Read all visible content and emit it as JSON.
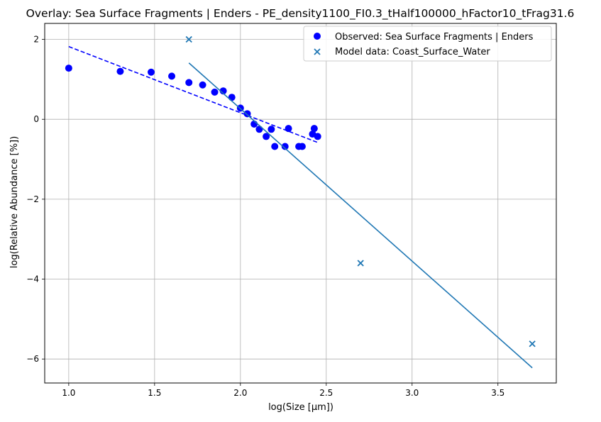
{
  "chart_data": {
    "type": "scatter",
    "title": "Overlay: Sea Surface Fragments | Enders - PE_density1100_FI0.3_tHalf100000_hFactor10_tFrag31.6",
    "xlabel": "log(Size [µm])",
    "ylabel": "log(Relative Abundance [%])",
    "xlim": [
      0.86,
      3.84
    ],
    "ylim": [
      -6.6,
      2.4
    ],
    "x_ticks": [
      1.0,
      1.5,
      2.0,
      2.5,
      3.0,
      3.5
    ],
    "x_tick_labels": [
      "1.0",
      "1.5",
      "2.0",
      "2.5",
      "3.0",
      "3.5"
    ],
    "y_ticks": [
      2,
      0,
      -2,
      -4,
      -6
    ],
    "y_tick_labels": [
      "2",
      "0",
      "−2",
      "−4",
      "−6"
    ],
    "grid": true,
    "legend_position": "top-right",
    "series": [
      {
        "name": "Observed: Sea Surface Fragments | Enders",
        "kind": "scatter",
        "marker": "circle",
        "color": "#0000ff",
        "points": [
          [
            1.0,
            1.28
          ],
          [
            1.3,
            1.2
          ],
          [
            1.48,
            1.18
          ],
          [
            1.6,
            1.08
          ],
          [
            1.7,
            0.92
          ],
          [
            1.78,
            0.86
          ],
          [
            1.85,
            0.68
          ],
          [
            1.9,
            0.71
          ],
          [
            1.95,
            0.55
          ],
          [
            2.0,
            0.28
          ],
          [
            2.04,
            0.14
          ],
          [
            2.08,
            -0.12
          ],
          [
            2.11,
            -0.25
          ],
          [
            2.15,
            -0.43
          ],
          [
            2.18,
            -0.25
          ],
          [
            2.2,
            -0.68
          ],
          [
            2.26,
            -0.68
          ],
          [
            2.28,
            -0.23
          ],
          [
            2.34,
            -0.68
          ],
          [
            2.36,
            -0.68
          ],
          [
            2.42,
            -0.37
          ],
          [
            2.43,
            -0.23
          ],
          [
            2.45,
            -0.43
          ]
        ]
      },
      {
        "name": "",
        "kind": "fit_line",
        "style": "dashed",
        "color": "#0000ff",
        "points": [
          [
            1.0,
            1.82
          ],
          [
            2.45,
            -0.58
          ]
        ]
      },
      {
        "name": "Model data: Coast_Surface_Water",
        "kind": "scatter",
        "marker": "x",
        "color": "#1f77b4",
        "points": [
          [
            1.7,
            2.0
          ],
          [
            2.7,
            -3.6
          ],
          [
            3.7,
            -5.62
          ]
        ]
      },
      {
        "name": "",
        "kind": "fit_line",
        "style": "solid",
        "color": "#1f77b4",
        "points": [
          [
            1.7,
            1.41
          ],
          [
            3.7,
            -6.22
          ]
        ]
      }
    ]
  }
}
